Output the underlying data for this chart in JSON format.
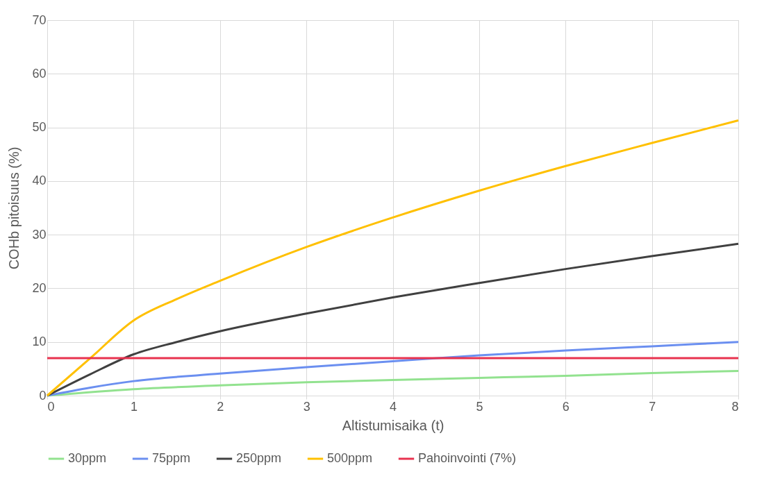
{
  "chart_data": {
    "type": "line",
    "xlabel": "Altistumisaika (t)",
    "ylabel": "COHb pitoisuus (%)",
    "xlim": [
      0,
      8
    ],
    "xticks": [
      0,
      1,
      2,
      3,
      4,
      5,
      6,
      7,
      8
    ],
    "ylim": [
      0,
      70
    ],
    "yticks": [
      0,
      10,
      20,
      30,
      40,
      50,
      60,
      70
    ],
    "grid": true,
    "legend": "bottom",
    "marker": "none",
    "line_style": "solid",
    "series": [
      {
        "name": "30ppm",
        "color": "#92e28f",
        "x": [
          0,
          1,
          2,
          3,
          4,
          5,
          6,
          7,
          8
        ],
        "values": [
          0,
          1.2,
          1.9,
          2.5,
          2.9,
          3.3,
          3.7,
          4.2,
          4.6
        ]
      },
      {
        "name": "75ppm",
        "color": "#6b8ff0",
        "x": [
          0,
          0.5,
          1,
          2,
          3,
          4,
          5,
          6,
          7,
          8
        ],
        "values": [
          0,
          1.5,
          2.7,
          4.1,
          5.3,
          6.4,
          7.5,
          8.4,
          9.2,
          10.0
        ]
      },
      {
        "name": "250ppm",
        "color": "#404040",
        "x": [
          0,
          0.5,
          1,
          1.5,
          2,
          3,
          4,
          5,
          6,
          7,
          8
        ],
        "values": [
          0,
          4,
          7.7,
          10,
          12,
          15.3,
          18.3,
          21,
          23.6,
          26,
          28.3
        ]
      },
      {
        "name": "500ppm",
        "color": "#ffc000",
        "x": [
          0,
          0.5,
          1,
          1.5,
          2,
          3,
          4,
          5,
          6,
          7,
          8
        ],
        "values": [
          0,
          7,
          14,
          18,
          21.4,
          27.7,
          33.2,
          38.2,
          42.8,
          47.1,
          51.3
        ]
      },
      {
        "name": "Pahoinvointi (7%)",
        "color": "#e8324f",
        "x": [
          0,
          8
        ],
        "values": [
          7,
          7
        ]
      }
    ]
  }
}
